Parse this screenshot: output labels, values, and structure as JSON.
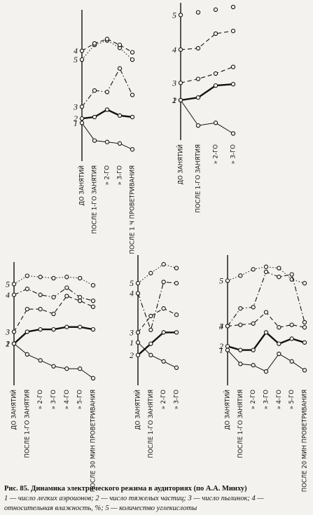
{
  "chart_data": [
    {
      "type": "line",
      "ylim": [
        0,
        10
      ],
      "categories": [
        "ДО ЗАНЯТИЙ",
        "ПОСЛЕ 1-ГО ЗАНЯТИЯ",
        "» 2-ГО",
        "» 3-ГО",
        "ПОСЛЕ 1 Ч ПРОВЕТРИВАНИЯ"
      ],
      "series": [
        {
          "name": "5",
          "color": "#111111",
          "style": "dotted",
          "values": [
            6.9,
            7.9,
            8.2,
            7.7,
            6.9
          ]
        },
        {
          "name": "4",
          "color": "#111111",
          "style": "dashed",
          "values": [
            7.5,
            8.0,
            8.3,
            7.9,
            7.4
          ]
        },
        {
          "name": "3",
          "color": "#111111",
          "style": "dashdot",
          "values": [
            3.7,
            4.8,
            4.7,
            6.3,
            4.5
          ]
        },
        {
          "name": "2",
          "color": "#111111",
          "style": "bold",
          "values": [
            2.9,
            3.0,
            3.5,
            3.1,
            3.0
          ]
        },
        {
          "name": "1",
          "color": "#111111",
          "style": "thin",
          "values": [
            2.6,
            1.4,
            1.3,
            1.2,
            0.8
          ]
        }
      ]
    },
    {
      "type": "line",
      "ylim": [
        0,
        10
      ],
      "categories": [
        "ДО ЗАНЯТИЙ",
        "ПОСЛЕ 1-ГО ЗАНЯТИЯ",
        "» 2-ГО",
        "» 3-ГО"
      ],
      "series": [
        {
          "name": "5",
          "color": "#111111",
          "style": "markers",
          "values": [
            9.4,
            9.6,
            9.8,
            10.0
          ]
        },
        {
          "name": "4",
          "color": "#111111",
          "style": "dashed",
          "values": [
            6.8,
            6.9,
            8.0,
            8.2
          ]
        },
        {
          "name": "3",
          "color": "#111111",
          "style": "dashed",
          "values": [
            4.3,
            4.6,
            5.0,
            5.5
          ]
        },
        {
          "name": "2",
          "color": "#111111",
          "style": "bold",
          "values": [
            3.0,
            3.2,
            4.1,
            4.2
          ]
        },
        {
          "name": "1",
          "color": "#111111",
          "style": "thin",
          "values": [
            3.0,
            1.1,
            1.3,
            0.5
          ]
        }
      ]
    },
    {
      "type": "line",
      "ylim": [
        0,
        10
      ],
      "categories": [
        "ДО ЗАНЯТИЙ",
        "ПОСЛЕ 1-ГО ЗАНЯТИЯ",
        "» 2-ГО",
        "» 3-ГО",
        "» 4-ГО",
        "» 5-ГО",
        "ПОСЛЕ 30 МИН ПРОВЕТРИВАНИЯ"
      ],
      "series": [
        {
          "name": "5",
          "color": "#111111",
          "style": "dotted",
          "values": [
            8.5,
            9.2,
            9.1,
            9.0,
            9.1,
            9.0,
            8.4
          ]
        },
        {
          "name": "4",
          "color": "#111111",
          "style": "dashdot",
          "values": [
            7.6,
            8.1,
            7.6,
            7.4,
            8.2,
            7.4,
            7.1
          ]
        },
        {
          "name": "3",
          "color": "#111111",
          "style": "dashed",
          "values": [
            4.5,
            6.4,
            6.4,
            6.0,
            7.5,
            7.1,
            6.6
          ]
        },
        {
          "name": "2",
          "color": "#111111",
          "style": "bold",
          "values": [
            3.5,
            4.5,
            4.7,
            4.7,
            4.9,
            4.9,
            4.7
          ]
        },
        {
          "name": "1",
          "color": "#111111",
          "style": "thin",
          "values": [
            3.5,
            2.6,
            2.1,
            1.6,
            1.4,
            1.4,
            0.6
          ]
        }
      ]
    },
    {
      "type": "line",
      "ylim": [
        0,
        10
      ],
      "categories": [
        "ДО ЗАНЯТИЙ",
        "ПОСЛЕ 1-ГО ЗАНЯТИЯ",
        "» 2-ГО",
        "» 3-ГО"
      ],
      "series": [
        {
          "name": "5",
          "color": "#111111",
          "style": "dotted",
          "values": [
            8.1,
            8.9,
            9.6,
            9.3
          ]
        },
        {
          "name": "4",
          "color": "#111111",
          "style": "dashdot",
          "values": [
            7.3,
            4.4,
            8.2,
            8.1
          ]
        },
        {
          "name": "3",
          "color": "#111111",
          "style": "dashed",
          "values": [
            4.2,
            5.5,
            6.1,
            5.6
          ]
        },
        {
          "name": "1",
          "color": "#111111",
          "style": "thin",
          "values": [
            3.4,
            2.4,
            1.9,
            1.4
          ]
        },
        {
          "name": "2",
          "color": "#111111",
          "style": "bold",
          "values": [
            2.4,
            3.3,
            4.2,
            4.2
          ]
        }
      ]
    },
    {
      "type": "line",
      "ylim": [
        0,
        10
      ],
      "categories": [
        "ДО ЗАНЯТИЙ",
        "ПОСЛЕ 1-ГО ЗАНЯТИЯ",
        "» 2-ГО",
        "» 3-ГО",
        "» 4-ГО",
        "» 5-ГО",
        "ПОСЛЕ 20 МИН ПРОВЕТРИВАНИЯ"
      ],
      "series": [
        {
          "name": "5",
          "color": "#111111",
          "style": "dotted",
          "values": [
            8.3,
            8.7,
            9.2,
            9.4,
            9.3,
            8.4,
            8.1
          ]
        },
        {
          "name": "4",
          "color": "#111111",
          "style": "dashdot",
          "values": [
            4.7,
            6.1,
            6.2,
            9.0,
            8.6,
            8.8,
            5.0
          ]
        },
        {
          "name": "3",
          "color": "#111111",
          "style": "dashed",
          "values": [
            4.7,
            4.8,
            4.9,
            5.8,
            4.6,
            4.8,
            4.6
          ]
        },
        {
          "name": "2",
          "color": "#111111",
          "style": "bold",
          "values": [
            3.1,
            2.8,
            2.8,
            4.2,
            3.3,
            3.7,
            3.4
          ]
        },
        {
          "name": "1",
          "color": "#111111",
          "style": "thin",
          "values": [
            2.8,
            1.7,
            1.6,
            1.1,
            2.5,
            1.9,
            1.2
          ]
        }
      ]
    }
  ],
  "caption": {
    "title": "Рис. 85. Динамика электрического режима в аудиториях (по А.А. Минху)",
    "legend_line_1": "1 — число легких аэроионов; 2 — число тяжелых частиц; 3 — число пылинок; 4 —",
    "legend_line_2": "относительная влажность, %; 5 — количество углекислоты"
  }
}
